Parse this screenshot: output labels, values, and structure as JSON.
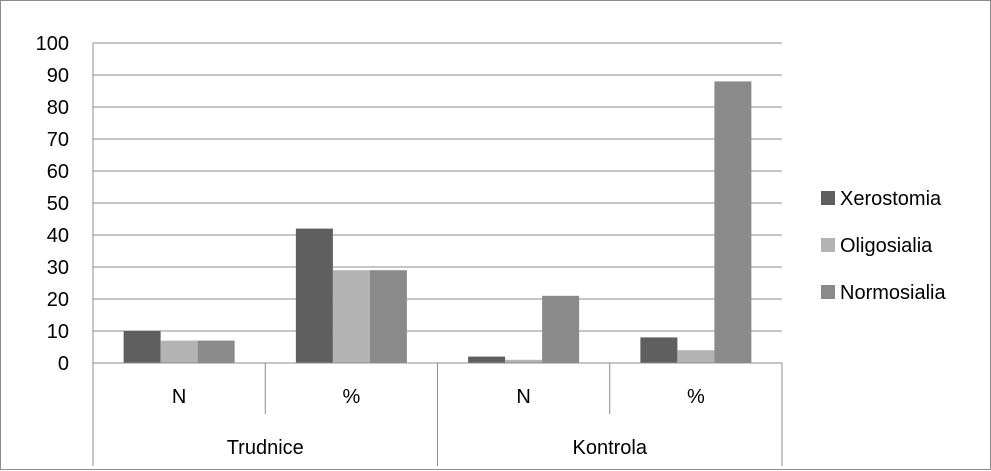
{
  "chart_data": {
    "type": "bar",
    "groups": [
      {
        "label": "Trudnice",
        "categories": [
          "N",
          "%"
        ]
      },
      {
        "label": "Kontrola",
        "categories": [
          "N",
          "%"
        ]
      }
    ],
    "categories": [
      "N",
      "%",
      "N",
      "%"
    ],
    "series": [
      {
        "name": "Xerostomia",
        "color": "#5f5f5f",
        "values": [
          10,
          42,
          2,
          8
        ]
      },
      {
        "name": "Oligosialia",
        "color": "#b3b3b3",
        "values": [
          7,
          29,
          1,
          4
        ]
      },
      {
        "name": "Normosialia",
        "color": "#8a8a8a",
        "values": [
          7,
          29,
          21,
          88
        ]
      }
    ],
    "ylim": [
      0,
      100
    ],
    "yticks": [
      0,
      10,
      20,
      30,
      40,
      50,
      60,
      70,
      80,
      90,
      100
    ],
    "grid": true,
    "legend": "right",
    "title": "",
    "xlabel": "",
    "ylabel": ""
  }
}
